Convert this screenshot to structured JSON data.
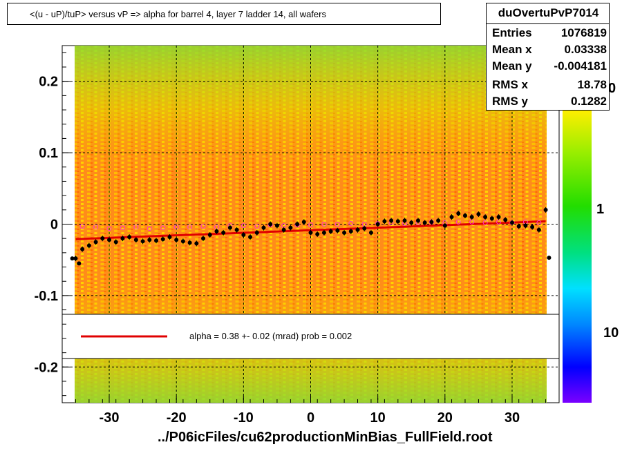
{
  "title": "<(u - uP)/tuP>  versus   vP =>  alpha for barrel 4, layer 7 ladder 14, all wafers",
  "stats": {
    "name": "duOvertuPvP7014",
    "rows": [
      {
        "key": "Entries",
        "value": "1076819"
      },
      {
        "key": "Mean x",
        "value": "0.03338"
      },
      {
        "key": "Mean y",
        "value": "-0.004181"
      },
      {
        "key": "RMS x",
        "value": "18.78"
      },
      {
        "key": "RMS y",
        "value": "0.1282"
      }
    ]
  },
  "fit_label": "alpha =    0.38 +-  0.02 (mrad) prob = 0.002",
  "x_title": "../P06icFiles/cu62productionMinBias_FullField.root",
  "colors": {
    "fit_line": "#e00000",
    "profile_points": "#000000",
    "secondary_points": "#ff33cc"
  },
  "chart_data": {
    "type": "scatter",
    "background": "2D histogram (colz), dense coverage over x=-35..35, y=-0.25..0.25",
    "xlim": [
      -37,
      37
    ],
    "ylim": [
      -0.25,
      0.25
    ],
    "x_ticks": [
      -30,
      -20,
      -10,
      0,
      10,
      20,
      30
    ],
    "y_ticks": [
      0.2,
      0.1,
      0,
      -0.1,
      -0.2
    ],
    "y_tick_labels": [
      "0.2",
      "0.1",
      "0",
      "-0.1",
      "-0.2"
    ],
    "grid": true,
    "color_scale": {
      "tick_labels": [
        "1",
        "10"
      ]
    },
    "profile": {
      "x": [
        -35,
        -34,
        -33,
        -32,
        -31,
        -30,
        -29,
        -28,
        -27,
        -26,
        -25,
        -24,
        -23,
        -22,
        -21,
        -20,
        -19,
        -18,
        -17,
        -16,
        -15,
        -14,
        -13,
        -12,
        -11,
        -10,
        -9,
        -8,
        -7,
        -6,
        -5,
        -4,
        -3,
        -2,
        -1,
        0,
        1,
        2,
        3,
        4,
        5,
        6,
        7,
        8,
        9,
        10,
        11,
        12,
        13,
        14,
        15,
        16,
        17,
        18,
        19,
        20,
        21,
        22,
        23,
        24,
        25,
        26,
        27,
        28,
        29,
        30,
        31,
        32,
        33,
        34,
        35
      ],
      "y": [
        -0.048,
        -0.035,
        -0.03,
        -0.025,
        -0.02,
        -0.022,
        -0.025,
        -0.02,
        -0.018,
        -0.022,
        -0.024,
        -0.022,
        -0.023,
        -0.021,
        -0.018,
        -0.022,
        -0.024,
        -0.026,
        -0.027,
        -0.02,
        -0.015,
        -0.01,
        -0.012,
        -0.005,
        -0.008,
        -0.015,
        -0.018,
        -0.012,
        -0.005,
        0.0,
        -0.002,
        -0.008,
        -0.005,
        0.0,
        0.003,
        -0.012,
        -0.014,
        -0.012,
        -0.01,
        -0.009,
        -0.012,
        -0.01,
        -0.008,
        -0.006,
        -0.012,
        0.0,
        0.004,
        0.005,
        0.004,
        0.005,
        0.002,
        0.005,
        0.002,
        0.003,
        0.005,
        -0.002,
        0.01,
        0.015,
        0.012,
        0.01,
        0.014,
        0.01,
        0.008,
        0.01,
        0.006,
        0.002,
        -0.003,
        -0.002,
        -0.004,
        -0.008,
        0.02
      ],
      "extra_points": [
        {
          "x": -35.5,
          "y": -0.048
        },
        {
          "x": -34.5,
          "y": -0.055
        },
        {
          "x": 35.5,
          "y": -0.047
        }
      ]
    },
    "secondary_profile": {
      "x": [
        -34,
        -32,
        -30,
        -28,
        -26,
        -24,
        -22,
        -20,
        -18,
        -16,
        -14,
        -12,
        -10,
        -8,
        -6,
        -4,
        -2,
        0,
        2,
        4,
        6,
        8,
        10,
        12,
        14,
        16,
        18,
        20,
        22,
        24,
        26,
        28,
        30,
        32,
        34
      ],
      "y": [
        -0.003,
        -0.004,
        -0.006,
        -0.005,
        -0.004,
        -0.006,
        -0.005,
        -0.004,
        -0.004,
        -0.003,
        -0.004,
        -0.002,
        -0.002,
        -0.003,
        -0.001,
        -0.002,
        -0.001,
        -0.001,
        0.0,
        0.0,
        0.001,
        0.0,
        0.001,
        0.002,
        0.001,
        0.002,
        0.003,
        0.002,
        0.003,
        0.003,
        0.002,
        0.003,
        0.002,
        0.003,
        0.002
      ]
    },
    "fit_line": {
      "x": [
        -35,
        35
      ],
      "y": [
        -0.021,
        0.004
      ]
    }
  }
}
